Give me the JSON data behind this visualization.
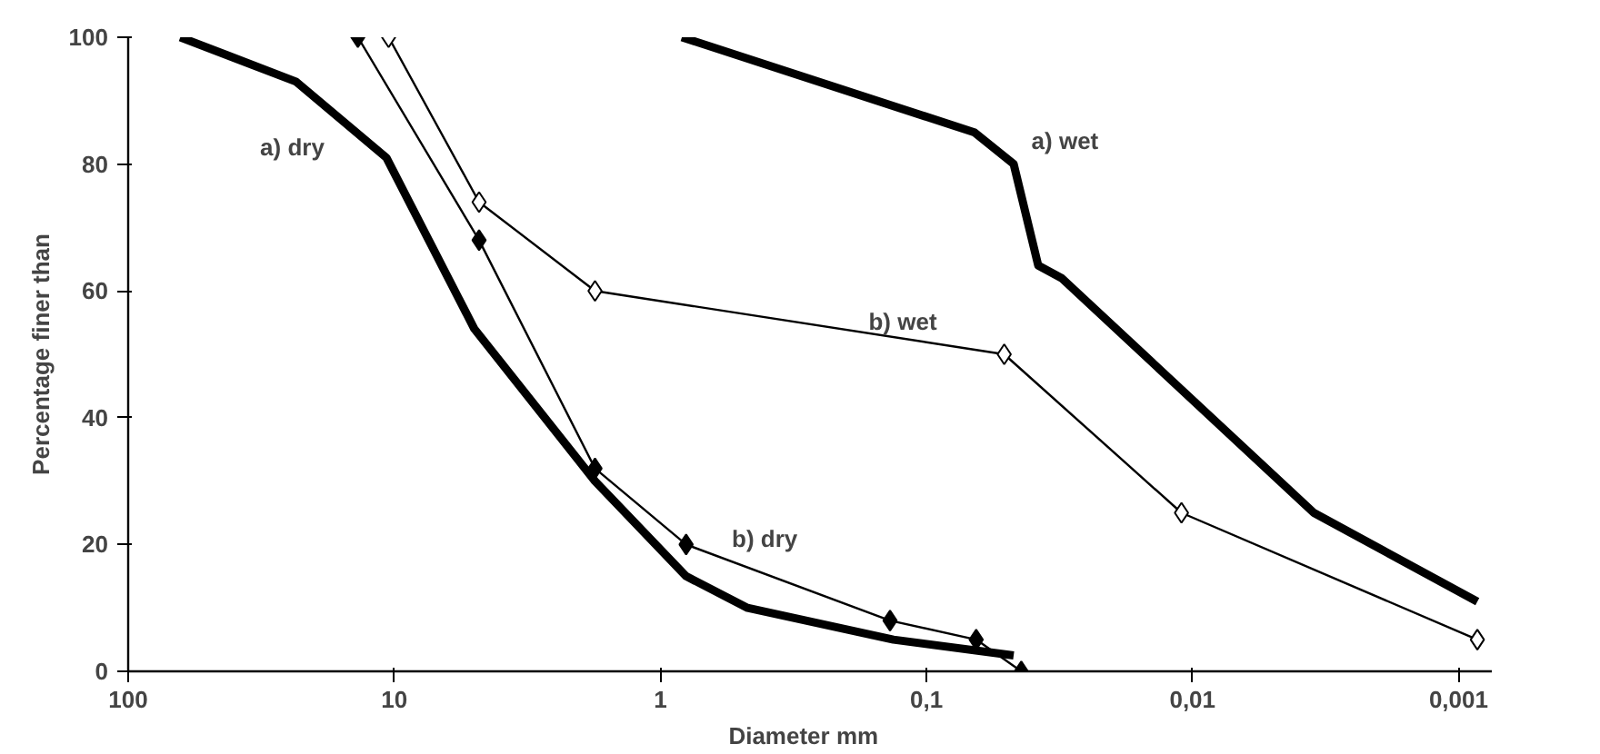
{
  "chart_data": {
    "type": "line",
    "xlabel": "Diameter   mm",
    "ylabel": "Percentage finer than",
    "log": "x",
    "grid": false,
    "legend": false,
    "xlim": [
      100,
      0.00075
    ],
    "xticks": [
      100,
      10,
      1,
      {
        "value": 0.1,
        "label": "0,1"
      },
      {
        "value": 0.01,
        "label": "0,01"
      },
      {
        "value": 0.001,
        "label": "0,001"
      }
    ],
    "ylim": [
      0,
      100
    ],
    "yticks": [
      0,
      20,
      40,
      60,
      80,
      100
    ],
    "series": [
      {
        "name": "a)  dry",
        "color": "#000000",
        "marker": "none",
        "x": [
          63.7,
          23.4,
          10.7,
          5.0,
          1.76,
          0.8,
          0.47,
          0.133,
          0.047
        ],
        "values": [
          100,
          93,
          81,
          54,
          30,
          15,
          10,
          5,
          2.5
        ]
      },
      {
        "name": "a)  wet",
        "color": "#000000",
        "marker": "none",
        "x": [
          0.83,
          0.066,
          0.047,
          0.038,
          0.031,
          0.0035,
          0.00085
        ],
        "values": [
          100,
          85,
          80,
          64,
          62,
          25,
          11
        ]
      },
      {
        "name": "b)  wet",
        "color": "#000000",
        "marker": "diamond",
        "x": [
          10.5,
          4.8,
          1.76,
          0.051,
          0.011,
          0.00085
        ],
        "values": [
          100,
          74,
          60,
          50,
          25,
          5
        ]
      },
      {
        "name": "b)  dry",
        "color": "#000000",
        "marker": "diamond",
        "x": [
          13.7,
          4.8,
          1.76,
          0.8,
          0.137,
          0.065,
          0.044
        ],
        "values": [
          100,
          68,
          32,
          20,
          8,
          5,
          0
        ]
      }
    ]
  }
}
